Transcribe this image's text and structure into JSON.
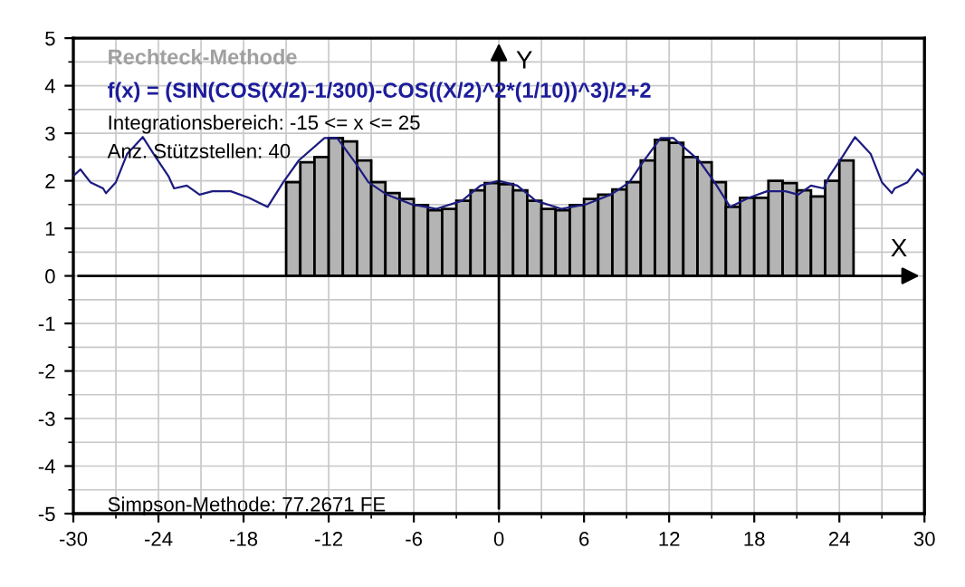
{
  "chart_data": {
    "type": "bar",
    "title": "Rechteck-Methode",
    "subtitle": "f(x) = (SIN(COS(X/2)-1/300)-COS((X/2)^2*(1/10))^3)/2+2",
    "xlabel": "X",
    "ylabel": "Y",
    "annotations": [
      "Integrationsbereich: -15 <= x <= 25",
      "Anz. Stützstellen: 40",
      "Simpson-Methode: 77.2671 FE"
    ],
    "series": [
      {
        "color": "#b4b4b4",
        "x": [
          -14.5,
          -13.5,
          -12.5,
          -11.5,
          -10.5,
          -9.5,
          -8.5,
          -7.5,
          -6.5,
          -5.5,
          -4.5,
          -3.5,
          -2.5,
          -1.5,
          -0.5,
          0.5,
          1.5,
          2.5,
          3.5,
          4.5,
          5.5,
          6.5,
          7.5,
          8.5,
          9.5,
          10.5,
          11.5,
          12.5,
          13.5,
          14.5,
          15.5,
          16.5,
          17.5,
          18.5,
          19.5,
          20.5,
          21.5,
          22.5,
          23.5,
          24.5
        ],
        "values": [
          1.97,
          2.39,
          2.5,
          2.9,
          2.83,
          2.43,
          1.97,
          1.74,
          1.62,
          1.49,
          1.38,
          1.41,
          1.58,
          1.8,
          1.95,
          1.93,
          1.8,
          1.58,
          1.41,
          1.38,
          1.49,
          1.62,
          1.71,
          1.82,
          1.97,
          2.43,
          2.86,
          2.8,
          2.5,
          2.39,
          1.97,
          1.45,
          1.64,
          1.64,
          2.0,
          1.95,
          1.8,
          1.67,
          2.0,
          2.43
        ]
      },
      {
        "type": "line",
        "color": "#1c1c80",
        "x": [
          -30,
          -29.5,
          -28.8,
          -27.9,
          -27.7,
          -27,
          -26.2,
          -25.1,
          -24.2,
          -23.3,
          -22.9,
          -22,
          -21.1,
          -20.2,
          -18.9,
          -17.6,
          -16.3,
          -15.2,
          -14.1,
          -12.3,
          -11.4,
          -10.1,
          -9.2,
          -7.9,
          -6.2,
          -4.4,
          -2.6,
          -1.3,
          0,
          1.3,
          2.6,
          4.4,
          6.2,
          7.9,
          9.2,
          10.1,
          11.4,
          12.3,
          14.1,
          15.2,
          16.3,
          17.6,
          18.9,
          20.2,
          21.1,
          22,
          22.9,
          23.3,
          24.2,
          25.1,
          26.2,
          27,
          27.7,
          27.9,
          28.8,
          29.5,
          30
        ],
        "values": [
          2.1,
          2.24,
          1.97,
          1.84,
          1.74,
          1.97,
          2.57,
          2.92,
          2.5,
          2.1,
          1.84,
          1.9,
          1.71,
          1.78,
          1.78,
          1.64,
          1.45,
          1.97,
          2.43,
          2.9,
          2.9,
          2.37,
          1.97,
          1.71,
          1.51,
          1.41,
          1.58,
          1.9,
          2.0,
          1.9,
          1.58,
          1.41,
          1.51,
          1.71,
          1.97,
          2.37,
          2.9,
          2.9,
          2.43,
          1.97,
          1.45,
          1.64,
          1.78,
          1.78,
          1.71,
          1.9,
          1.84,
          2.1,
          2.5,
          2.92,
          2.57,
          1.97,
          1.74,
          1.84,
          1.97,
          2.24,
          2.1
        ]
      }
    ],
    "xlim": [
      -30,
      30
    ],
    "ylim": [
      -5,
      5
    ],
    "xticks": [
      -30,
      -24,
      -18,
      -12,
      -6,
      0,
      6,
      12,
      18,
      24,
      30
    ],
    "yticks": [
      -5,
      -4,
      -3,
      -2,
      -1,
      0,
      1,
      2,
      3,
      4,
      5
    ],
    "grid": true
  }
}
